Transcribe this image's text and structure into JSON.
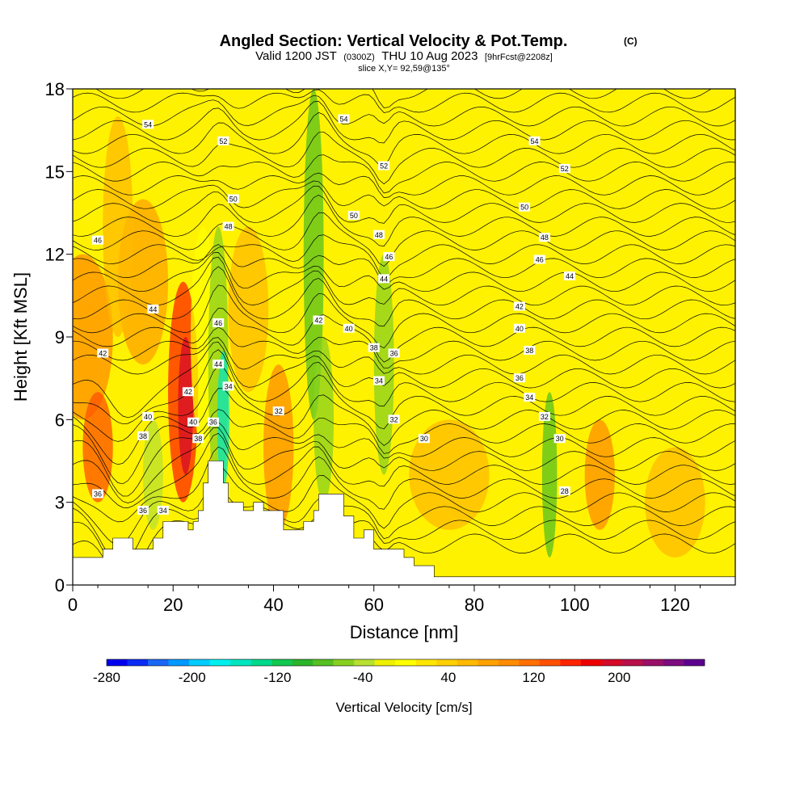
{
  "chart_data": {
    "type": "contour",
    "title": "Angled Section: Vertical Velocity & Pot.Temp.",
    "title_suffix": "(C)",
    "subtitle_parts": [
      "Valid 1200 JST",
      "(0300Z)",
      "THU 10 Aug 2023",
      "[9hrFcst@2208z]"
    ],
    "subsubtitle": "slice X,Y= 92,59@135°",
    "xlabel": "Distance [nm]",
    "ylabel": "Height [Kft MSL]",
    "xlim": [
      0,
      132
    ],
    "ylim": [
      0,
      18
    ],
    "x_ticks": [
      "0",
      "20",
      "40",
      "60",
      "80",
      "100",
      "120"
    ],
    "y_ticks": [
      "0",
      "3",
      "6",
      "9",
      "12",
      "15",
      "18"
    ],
    "colorbar": {
      "label": "Vertical Velocity [cm/s]",
      "range": [
        -280,
        280
      ],
      "tick_values": [
        "-280",
        "-200",
        "-120",
        "-40",
        "40",
        "120",
        "200"
      ],
      "colors": [
        "#0000ee",
        "#0a2cf5",
        "#1a66f5",
        "#0099ff",
        "#00ccff",
        "#00f0ee",
        "#00e6bf",
        "#00d98c",
        "#10c850",
        "#2bb52b",
        "#55c020",
        "#88d020",
        "#b8e030",
        "#eef000",
        "#ffff00",
        "#ffe600",
        "#ffd000",
        "#ffba00",
        "#ffa200",
        "#ff8c00",
        "#ff7000",
        "#ff5000",
        "#ff2400",
        "#ee0000",
        "#d40a28",
        "#b8104a",
        "#9a1068",
        "#7c0c80",
        "#5c0090"
      ]
    },
    "contour_labels": [
      {
        "x": 15,
        "y": 16.7,
        "t": "54"
      },
      {
        "x": 30,
        "y": 16.1,
        "t": "52"
      },
      {
        "x": 54,
        "y": 16.9,
        "t": "54"
      },
      {
        "x": 92,
        "y": 16.1,
        "t": "54"
      },
      {
        "x": 62,
        "y": 15.2,
        "t": "52"
      },
      {
        "x": 98,
        "y": 15.1,
        "t": "52"
      },
      {
        "x": 32,
        "y": 14.0,
        "t": "50"
      },
      {
        "x": 56,
        "y": 13.4,
        "t": "50"
      },
      {
        "x": 90,
        "y": 13.7,
        "t": "50"
      },
      {
        "x": 31,
        "y": 13.0,
        "t": "48"
      },
      {
        "x": 61,
        "y": 12.7,
        "t": "48"
      },
      {
        "x": 94,
        "y": 12.6,
        "t": "48"
      },
      {
        "x": 5,
        "y": 12.5,
        "t": "46"
      },
      {
        "x": 63,
        "y": 11.9,
        "t": "46"
      },
      {
        "x": 93,
        "y": 11.8,
        "t": "46"
      },
      {
        "x": 62,
        "y": 11.1,
        "t": "44"
      },
      {
        "x": 99,
        "y": 11.2,
        "t": "44"
      },
      {
        "x": 16,
        "y": 10.0,
        "t": "44"
      },
      {
        "x": 89,
        "y": 10.1,
        "t": "42"
      },
      {
        "x": 49,
        "y": 9.6,
        "t": "42"
      },
      {
        "x": 29,
        "y": 9.5,
        "t": "46"
      },
      {
        "x": 55,
        "y": 9.3,
        "t": "40"
      },
      {
        "x": 89,
        "y": 9.3,
        "t": "40"
      },
      {
        "x": 6,
        "y": 8.4,
        "t": "42"
      },
      {
        "x": 60,
        "y": 8.6,
        "t": "38"
      },
      {
        "x": 64,
        "y": 8.4,
        "t": "36"
      },
      {
        "x": 91,
        "y": 8.5,
        "t": "38"
      },
      {
        "x": 29,
        "y": 8.0,
        "t": "44"
      },
      {
        "x": 61,
        "y": 7.4,
        "t": "34"
      },
      {
        "x": 89,
        "y": 7.5,
        "t": "36"
      },
      {
        "x": 23,
        "y": 7.0,
        "t": "42"
      },
      {
        "x": 31,
        "y": 7.2,
        "t": "34"
      },
      {
        "x": 91,
        "y": 6.8,
        "t": "34"
      },
      {
        "x": 41,
        "y": 6.3,
        "t": "32"
      },
      {
        "x": 15,
        "y": 6.1,
        "t": "40"
      },
      {
        "x": 24,
        "y": 5.9,
        "t": "40"
      },
      {
        "x": 28,
        "y": 5.9,
        "t": "36"
      },
      {
        "x": 64,
        "y": 6.0,
        "t": "32"
      },
      {
        "x": 94,
        "y": 6.1,
        "t": "32"
      },
      {
        "x": 14,
        "y": 5.4,
        "t": "38"
      },
      {
        "x": 25,
        "y": 5.3,
        "t": "38"
      },
      {
        "x": 70,
        "y": 5.3,
        "t": "30"
      },
      {
        "x": 97,
        "y": 5.3,
        "t": "30"
      },
      {
        "x": 5,
        "y": 3.3,
        "t": "36"
      },
      {
        "x": 14,
        "y": 2.7,
        "t": "36"
      },
      {
        "x": 18,
        "y": 2.7,
        "t": "34"
      },
      {
        "x": 98,
        "y": 3.4,
        "t": "28"
      }
    ]
  }
}
